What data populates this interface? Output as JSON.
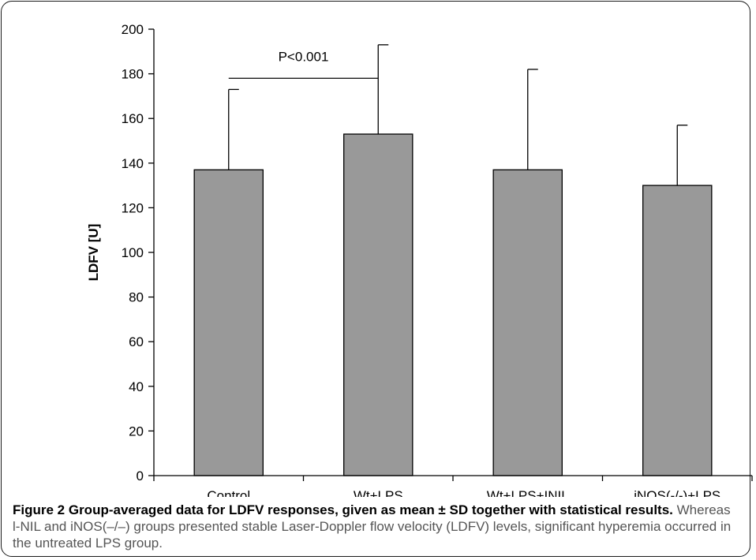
{
  "figure": {
    "caption_bold": "Figure 2 Group-averaged data for LDFV responses, given as mean ± SD together with statistical results.",
    "caption_text": " Whereas l-NIL and iNOS(–/–) groups presented stable Laser-Doppler flow velocity (LDFV) levels, significant hyperemia occurred in the untreated LPS group."
  },
  "chart_data": {
    "type": "bar",
    "title": "",
    "xlabel": "",
    "ylabel": "LDFV [U]",
    "categories": [
      "Control",
      "Wt+LPS",
      "Wt+LPS+INIL",
      "iNOS(-/-)+LPS"
    ],
    "values": [
      137,
      153,
      137,
      130
    ],
    "error_upper": [
      36,
      40,
      45,
      27
    ],
    "ylim": [
      0,
      200
    ],
    "yticks": [
      0,
      20,
      40,
      60,
      80,
      100,
      120,
      140,
      160,
      180,
      200
    ],
    "bar_color": "#999999",
    "grid": false,
    "legend": "none",
    "annotations": [
      {
        "text": "P<0.001",
        "from_category": "Control",
        "to_category": "Wt+LPS",
        "y": 178
      }
    ]
  }
}
